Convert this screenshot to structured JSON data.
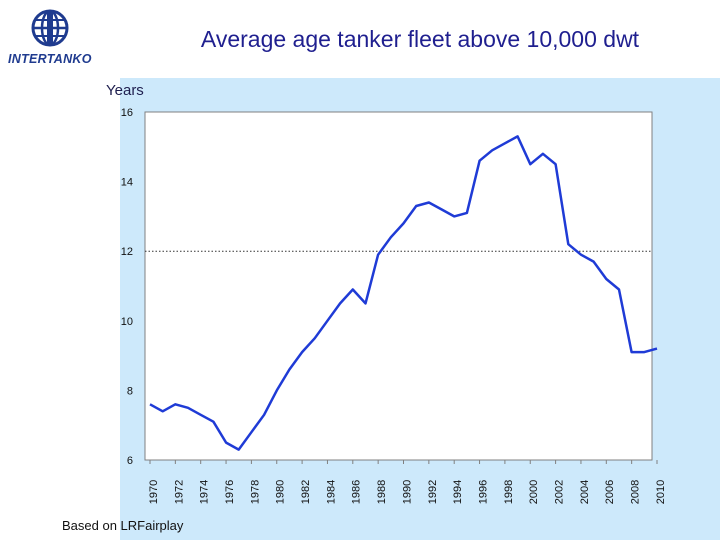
{
  "page": {
    "title": "Average age tanker fleet above 10,000 dwt",
    "logo_text": "INTERTANKO",
    "footnote": "Based on LRFairplay"
  },
  "colors": {
    "line": "#1f3bd6",
    "background": "#cde9fb",
    "plot_background": "#ffffff",
    "title": "#1f1f8f"
  },
  "chart_data": {
    "type": "line",
    "title": "Average age tanker fleet above 10,000 dwt",
    "ylabel": "Years",
    "xlabel": "",
    "ylim": [
      6,
      16
    ],
    "xlim": [
      1970,
      2010
    ],
    "yticks": [
      6,
      8,
      10,
      12,
      14,
      16
    ],
    "xticks": [
      1970,
      1972,
      1974,
      1976,
      1978,
      1980,
      1982,
      1984,
      1986,
      1988,
      1990,
      1992,
      1994,
      1996,
      1998,
      2000,
      2002,
      2004,
      2006,
      2008,
      2010
    ],
    "reference_line": {
      "y": 12,
      "style": "dotted"
    },
    "grid": false,
    "series": [
      {
        "x": [
          1970,
          1971,
          1972,
          1973,
          1974,
          1975,
          1976,
          1977,
          1978,
          1979,
          1980,
          1981,
          1982,
          1983,
          1984,
          1985,
          1986,
          1987,
          1988,
          1989,
          1990,
          1991,
          1992,
          1993,
          1994,
          1995,
          1996,
          1997,
          1998,
          1999,
          2000,
          2001,
          2002,
          2003,
          2004,
          2005,
          2006,
          2007,
          2008,
          2009,
          2010
        ],
        "y": [
          7.6,
          7.4,
          7.6,
          7.5,
          7.3,
          7.1,
          6.5,
          6.3,
          6.8,
          7.3,
          8.0,
          8.6,
          9.1,
          9.5,
          10.0,
          10.5,
          10.9,
          10.5,
          11.9,
          12.4,
          12.8,
          13.3,
          13.4,
          13.2,
          13.0,
          13.1,
          14.6,
          14.9,
          15.1,
          15.3,
          14.5,
          14.8,
          14.5,
          12.2,
          11.9,
          11.7,
          11.2,
          10.9,
          9.1,
          9.1,
          9.2
        ]
      }
    ]
  }
}
